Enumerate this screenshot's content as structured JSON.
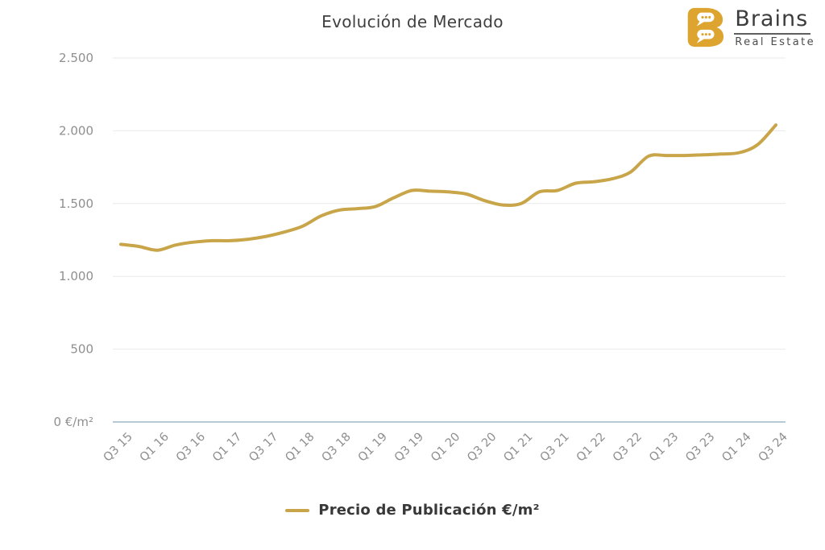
{
  "header": {
    "title": "Evolución de Mercado"
  },
  "logo": {
    "name": "Brains",
    "subtitle": "Real Estate",
    "icon": "brains-speech-bubble-b",
    "icon_color": "#DDA42F"
  },
  "legend": {
    "items": [
      {
        "label": "Precio de Publicación €/m²",
        "color": "#C9A54A"
      }
    ]
  },
  "colors": {
    "accent_gold": "#C9A54A",
    "logo_gold": "#DDA42F",
    "grid_line": "#e9e9e9",
    "axis_line": "#b7cad4",
    "tick_label": "#8f8f8f",
    "title_text": "#3f3f3f",
    "legend_text": "#383838"
  },
  "chart_data": {
    "type": "line",
    "title": "Evolución de Mercado",
    "xlabel": "",
    "ylabel": "€/m²",
    "ylim": [
      0,
      2500
    ],
    "grid": true,
    "legend_position": "bottom",
    "x_frequency": "quarterly",
    "points_per_tick": 2,
    "y_ticks": [
      {
        "value": 0,
        "label": "0 €/m²"
      },
      {
        "value": 500,
        "label": "500"
      },
      {
        "value": 1000,
        "label": "1.000"
      },
      {
        "value": 1500,
        "label": "1.500"
      },
      {
        "value": 2000,
        "label": "2.000"
      },
      {
        "value": 2500,
        "label": "2.500"
      }
    ],
    "x_tick_labels": [
      "Q3 15",
      "Q1 16",
      "Q3 16",
      "Q1 17",
      "Q3 17",
      "Q1 18",
      "Q3 18",
      "Q1 19",
      "Q3 19",
      "Q1 20",
      "Q3 20",
      "Q1 21",
      "Q3 21",
      "Q1 22",
      "Q3 22",
      "Q1 23",
      "Q3 23",
      "Q1 24",
      "Q3 24"
    ],
    "x_categories": [
      "Q3 15",
      "Q4 15",
      "Q1 16",
      "Q2 16",
      "Q3 16",
      "Q4 16",
      "Q1 17",
      "Q2 17",
      "Q3 17",
      "Q4 17",
      "Q1 18",
      "Q2 18",
      "Q3 18",
      "Q4 18",
      "Q1 19",
      "Q2 19",
      "Q3 19",
      "Q4 19",
      "Q1 20",
      "Q2 20",
      "Q3 20",
      "Q4 20",
      "Q1 21",
      "Q2 21",
      "Q3 21",
      "Q4 21",
      "Q1 22",
      "Q2 22",
      "Q3 22",
      "Q4 22",
      "Q1 23",
      "Q2 23",
      "Q3 23",
      "Q4 23",
      "Q1 24",
      "Q2 24",
      "Q3 24"
    ],
    "series": [
      {
        "name": "Precio de Publicación €/m²",
        "color": "#C9A54A",
        "values": [
          1220,
          1205,
          1180,
          1215,
          1235,
          1245,
          1245,
          1255,
          1275,
          1305,
          1345,
          1415,
          1455,
          1465,
          1480,
          1540,
          1590,
          1585,
          1580,
          1565,
          1520,
          1490,
          1500,
          1580,
          1590,
          1640,
          1650,
          1670,
          1715,
          1825,
          1830,
          1830,
          1835,
          1840,
          1850,
          1905,
          2040
        ]
      }
    ]
  }
}
